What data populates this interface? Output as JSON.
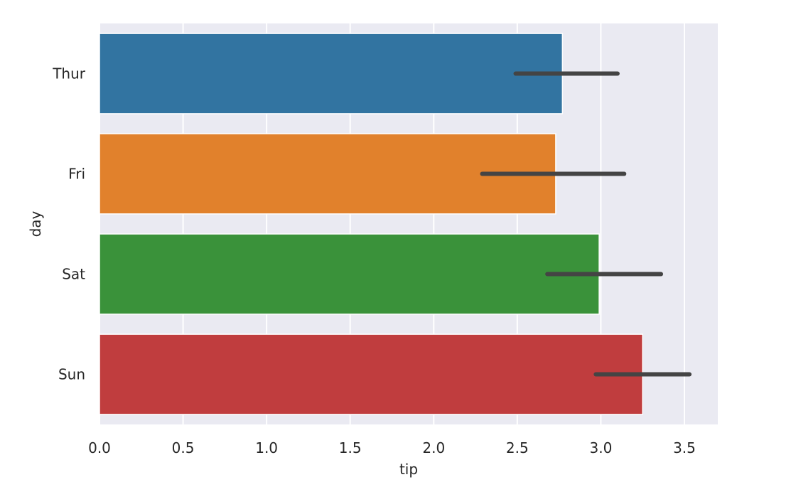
{
  "chart_data": {
    "type": "bar",
    "orientation": "horizontal",
    "xlabel": "tip",
    "ylabel": "day",
    "xlim": [
      0,
      3.7
    ],
    "xticks": [
      0.0,
      0.5,
      1.0,
      1.5,
      2.0,
      2.5,
      3.0,
      3.5
    ],
    "xtick_labels": [
      "0.0",
      "0.5",
      "1.0",
      "1.5",
      "2.0",
      "2.5",
      "3.0",
      "3.5"
    ],
    "grid": true,
    "bars": [
      {
        "category": "Thur",
        "value": 2.77,
        "ci": [
          2.49,
          3.1
        ],
        "color": "#3274a1"
      },
      {
        "category": "Fri",
        "value": 2.73,
        "ci": [
          2.29,
          3.14
        ],
        "color": "#e1812c"
      },
      {
        "category": "Sat",
        "value": 2.99,
        "ci": [
          2.68,
          3.36
        ],
        "color": "#3a923a"
      },
      {
        "category": "Sun",
        "value": 3.25,
        "ci": [
          2.97,
          3.53
        ],
        "color": "#c03d3e"
      }
    ],
    "background_color": "#eaeaf2",
    "errorbar_color": "#444444"
  }
}
